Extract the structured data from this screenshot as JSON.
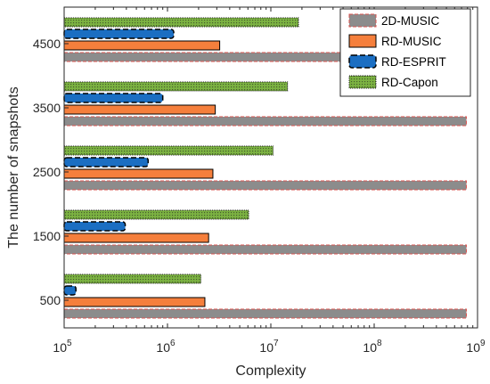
{
  "chart_data": {
    "type": "bar",
    "orientation": "horizontal",
    "title": "",
    "xlabel": "Complexity",
    "ylabel": "The number of snapshots",
    "xscale": "log",
    "xlim": [
      100000,
      1000000000
    ],
    "x_ticks": [
      {
        "base": "10",
        "exp": "5"
      },
      {
        "base": "10",
        "exp": "6"
      },
      {
        "base": "10",
        "exp": "7"
      },
      {
        "base": "10",
        "exp": "8"
      },
      {
        "base": "10",
        "exp": "9"
      }
    ],
    "categories": [
      "500",
      "1500",
      "2500",
      "3500",
      "4500"
    ],
    "series": [
      {
        "name": "2D-MUSIC",
        "color": "#8c8c8c",
        "edge": "#d9534f",
        "values": [
          780000000,
          780000000,
          780000000,
          780000000,
          780000000
        ]
      },
      {
        "name": "RD-MUSIC",
        "color": "#f57f3c",
        "edge": "#000000",
        "values": [
          2300000,
          2500000,
          2750000,
          2900000,
          3200000
        ]
      },
      {
        "name": "RD-ESPRIT",
        "color": "#1b6ec2",
        "edge": "#000000",
        "values": [
          130000,
          390000,
          650000,
          900000,
          1150000
        ]
      },
      {
        "name": "RD-Capon",
        "color": "#7cb342",
        "edge": "#1a1a1a",
        "values": [
          2100000,
          6100000,
          10500000,
          14500000,
          18500000
        ]
      }
    ],
    "legend_position": "top-right",
    "grid": false
  }
}
